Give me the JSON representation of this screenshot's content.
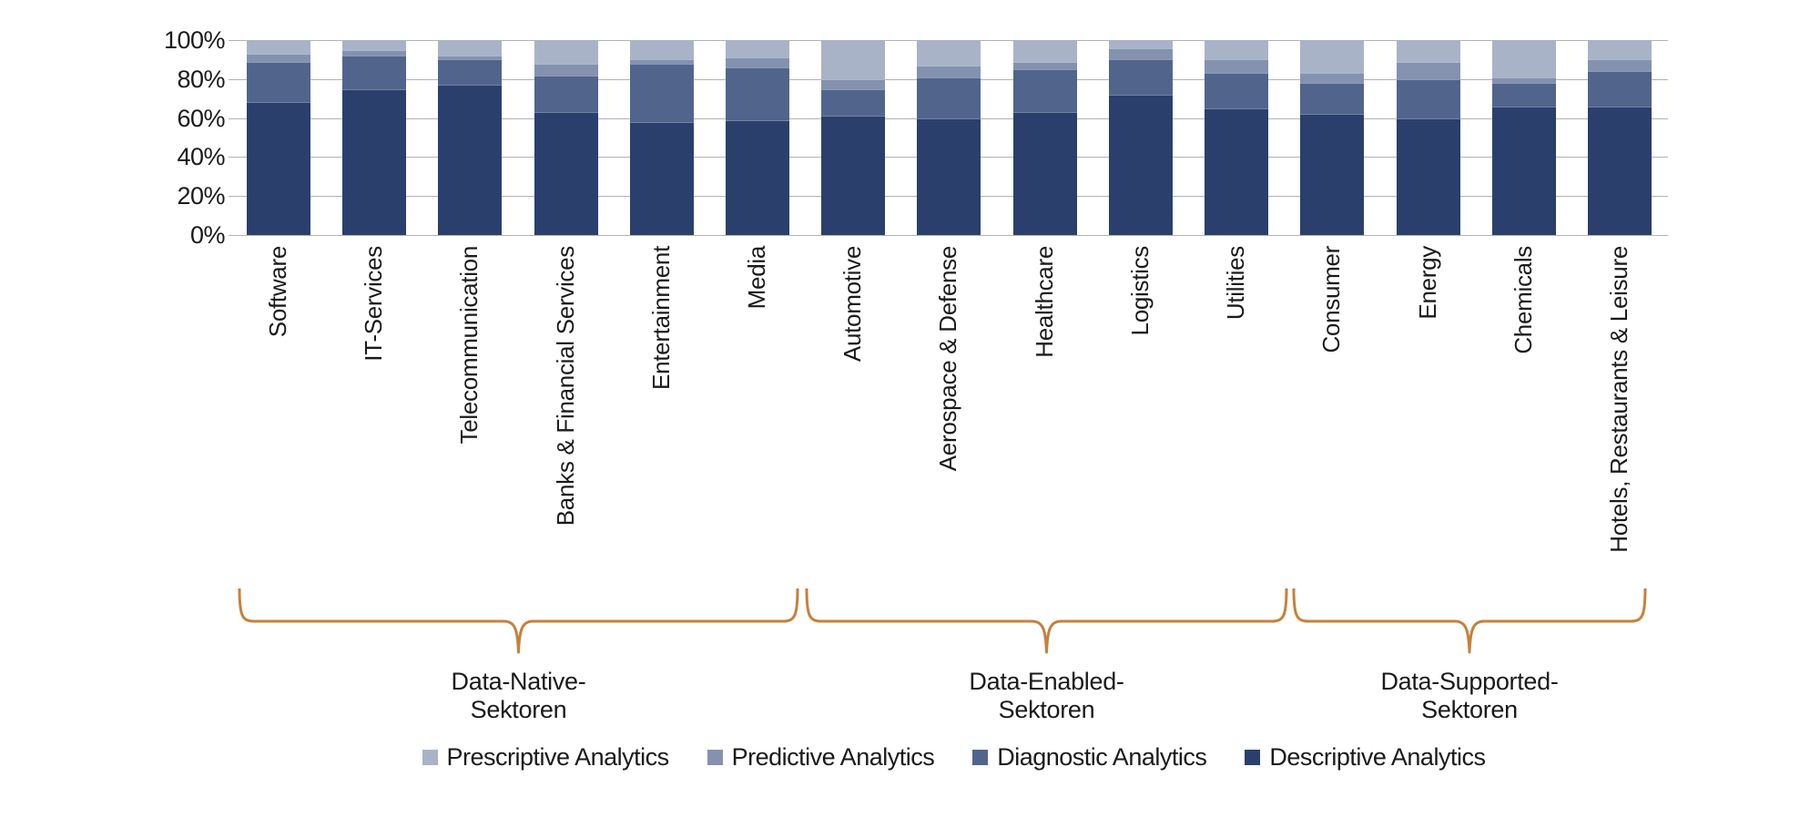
{
  "chart_data": {
    "type": "bar",
    "stacked": true,
    "unit": "%",
    "title": "",
    "xlabel": "",
    "ylabel": "",
    "ylim": [
      0,
      100
    ],
    "grid": true,
    "y_ticks": [
      "0%",
      "20%",
      "40%",
      "60%",
      "80%",
      "100%"
    ],
    "categories": [
      "Software",
      "IT-Services",
      "Telecommunication",
      "Banks & Financial Services",
      "Entertainment",
      "Media",
      "Automotive",
      "Aerospace & Defense",
      "Healthcare",
      "Logistics",
      "Utilities",
      "Consumer",
      "Energy",
      "Chemicals",
      "Hotels, Restaurants & Leisure"
    ],
    "series": [
      {
        "name": "Descriptive Analytics",
        "color": "#2a3f6c",
        "values": [
          68,
          75,
          77,
          63,
          58,
          59,
          61,
          60,
          63,
          72,
          65,
          62,
          60,
          66,
          66
        ]
      },
      {
        "name": "Diagnostic Analytics",
        "color": "#51648c",
        "values": [
          21,
          17,
          13,
          19,
          30,
          27,
          14,
          21,
          22,
          18,
          18,
          16,
          20,
          12,
          18
        ]
      },
      {
        "name": "Predictive Analytics",
        "color": "#8492b0",
        "values": [
          4,
          3,
          2,
          6,
          2,
          5,
          5,
          6,
          4,
          6,
          7,
          5,
          9,
          3,
          6
        ]
      },
      {
        "name": "Prescriptive Analytics",
        "color": "#a8b3c8",
        "values": [
          7,
          5,
          8,
          12,
          10,
          9,
          20,
          13,
          11,
          4,
          10,
          17,
          11,
          19,
          10
        ]
      }
    ],
    "legend_position": "bottom",
    "legend_order": [
      "Prescriptive Analytics",
      "Predictive Analytics",
      "Diagnostic Analytics",
      "Descriptive Analytics"
    ],
    "groups": [
      {
        "lines": [
          "Data-Native-",
          "Sektoren"
        ],
        "from": 0,
        "to": 5
      },
      {
        "lines": [
          "Data-Enabled-",
          "Sektoren"
        ],
        "from": 6,
        "to": 10
      },
      {
        "lines": [
          "Data-Supported-",
          "Sektoren"
        ],
        "from": 11,
        "to": 14
      }
    ],
    "brace_color": "#c5813b",
    "grid_color": "#b3b3b3",
    "text_color": "#1a1a1a"
  }
}
